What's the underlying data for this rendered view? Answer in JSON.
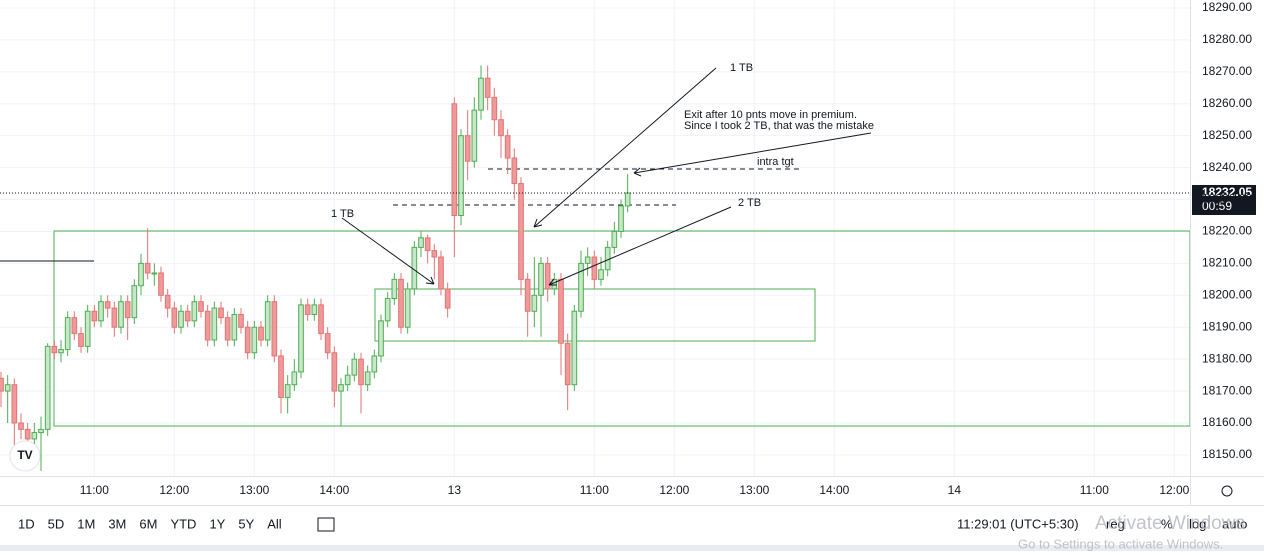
{
  "chart_data": {
    "type": "candlestick",
    "open": [
      18174,
      18170,
      18172,
      18160,
      18158,
      18155,
      18157,
      18158,
      18184,
      18182,
      18183,
      18193,
      18188,
      18184,
      18195,
      18192,
      18198,
      18196,
      18190,
      18198,
      18193,
      18203,
      18210,
      18207,
      18207,
      18200,
      18196,
      18190,
      18195,
      18192,
      18198,
      18195,
      18186,
      18196,
      18193,
      18186,
      18194,
      18190,
      18182,
      18190,
      18186,
      18198,
      18181,
      18168,
      18172,
      18176,
      18197,
      18194,
      18197,
      18188,
      18182,
      18170,
      18172,
      18175,
      18180,
      18172,
      18176,
      18181,
      18192,
      18199,
      18205,
      18190,
      18202,
      18215,
      18218,
      18214,
      18212,
      18202,
      18260,
      18225,
      18250,
      18242,
      18258,
      18268,
      18262,
      18255,
      18250,
      18243,
      18235,
      18205,
      18195,
      18200,
      18210,
      18202,
      18205,
      18185,
      18172,
      18195,
      18210,
      18212,
      18205,
      18208,
      18215,
      18220,
      18228
    ],
    "high": [
      18176,
      18175,
      18174,
      18163,
      18160,
      18160,
      18162,
      18185,
      18186,
      18186,
      18195,
      18195,
      18190,
      18197,
      18197,
      18200,
      18200,
      18198,
      18200,
      18200,
      18205,
      18213,
      18221,
      18210,
      18209,
      18202,
      18198,
      18197,
      18197,
      18200,
      18200,
      18197,
      18198,
      18198,
      18195,
      18196,
      18196,
      18192,
      18192,
      18192,
      18200,
      18200,
      18183,
      18175,
      18180,
      18199,
      18199,
      18199,
      18199,
      18190,
      18184,
      18174,
      18178,
      18182,
      18182,
      18178,
      18183,
      18194,
      18201,
      18207,
      18207,
      18204,
      18217,
      18220,
      18219,
      18216,
      18214,
      18204,
      18262,
      18252,
      18258,
      18262,
      18272,
      18272,
      18265,
      18258,
      18252,
      18246,
      18237,
      18207,
      18212,
      18212,
      18212,
      18207,
      18207,
      18188,
      18197,
      18214,
      18215,
      18214,
      18212,
      18217,
      18223,
      18230,
      18238
    ],
    "low": [
      18165,
      18160,
      18153,
      18155,
      18150,
      18152,
      18145,
      18156,
      18180,
      18179,
      18181,
      18186,
      18182,
      18182,
      18190,
      18190,
      18193,
      18187,
      18188,
      18186,
      18191,
      18200,
      18205,
      18203,
      18198,
      18193,
      18188,
      18188,
      18190,
      18190,
      18193,
      18184,
      18184,
      18191,
      18184,
      18184,
      18188,
      18180,
      18180,
      18184,
      18184,
      18179,
      18163,
      18163,
      18170,
      18174,
      18192,
      18192,
      18186,
      18180,
      18165,
      18159,
      18170,
      18173,
      18163,
      18170,
      18174,
      18179,
      18190,
      18197,
      18188,
      18188,
      18200,
      18212,
      18210,
      18205,
      18200,
      18193,
      18212,
      18222,
      18236,
      18240,
      18255,
      18258,
      18250,
      18243,
      18238,
      18230,
      18200,
      18187,
      18190,
      18187,
      18198,
      18200,
      18175,
      18164,
      18170,
      18193,
      18206,
      18202,
      18203,
      18206,
      18213,
      18218,
      18226
    ],
    "close": [
      18170,
      18172,
      18160,
      18158,
      18155,
      18157,
      18158,
      18184,
      18182,
      18183,
      18193,
      18188,
      18184,
      18195,
      18192,
      18198,
      18196,
      18190,
      18198,
      18193,
      18203,
      18210,
      18207,
      18207,
      18200,
      18196,
      18190,
      18195,
      18192,
      18198,
      18195,
      18186,
      18196,
      18193,
      18186,
      18194,
      18190,
      18182,
      18190,
      18186,
      18198,
      18181,
      18168,
      18172,
      18176,
      18197,
      18194,
      18197,
      18188,
      18182,
      18170,
      18172,
      18175,
      18180,
      18172,
      18176,
      18181,
      18192,
      18199,
      18205,
      18190,
      18202,
      18215,
      18218,
      18214,
      18212,
      18202,
      18196,
      18225,
      18250,
      18242,
      18258,
      18268,
      18262,
      18255,
      18250,
      18243,
      18235,
      18205,
      18195,
      18200,
      18210,
      18202,
      18205,
      18185,
      18172,
      18195,
      18210,
      18212,
      18205,
      18208,
      18215,
      18220,
      18228,
      18232.05
    ],
    "up_color": "#4caf50",
    "down_color": "#ef9a9a",
    "grid": true,
    "xlim": [
      -0.15,
      178.35
    ],
    "xticks": [
      {
        "value": 14,
        "label": "11:00"
      },
      {
        "value": 26,
        "label": "12:00"
      },
      {
        "value": 38,
        "label": "13:00"
      },
      {
        "value": 50,
        "label": "14:00"
      },
      {
        "value": 68,
        "label": "13"
      },
      {
        "value": 89,
        "label": "11:00"
      },
      {
        "value": 101,
        "label": "12:00"
      },
      {
        "value": 113,
        "label": "13:00"
      },
      {
        "value": 125,
        "label": "14:00"
      },
      {
        "value": 143,
        "label": "14"
      },
      {
        "value": 164,
        "label": "11:00"
      },
      {
        "value": 176,
        "label": "12:00"
      }
    ],
    "ylim": [
      18143.4,
      18292.5
    ],
    "yticks": [
      {
        "value": 18150,
        "label": "18150.00"
      },
      {
        "value": 18160,
        "label": "18160.00"
      },
      {
        "value": 18170,
        "label": "18170.00"
      },
      {
        "value": 18180,
        "label": "18180.00"
      },
      {
        "value": 18190,
        "label": "18190.00"
      },
      {
        "value": 18200,
        "label": "18200.00"
      },
      {
        "value": 18210,
        "label": "18210.00"
      },
      {
        "value": 18220,
        "label": "18220.00"
      },
      {
        "value": 18230,
        "label": "18230.00"
      },
      {
        "value": 18240,
        "label": "18240.00"
      },
      {
        "value": 18250,
        "label": "18250.00"
      },
      {
        "value": 18260,
        "label": "18260.00"
      },
      {
        "value": 18270,
        "label": "18270.00"
      },
      {
        "value": 18280,
        "label": "18280.00"
      },
      {
        "value": 18290,
        "label": "18290.00"
      }
    ],
    "last_price": 18232.05,
    "countdown": "00:59",
    "annotations": [
      "1 TB",
      "Exit after 10 pnts move in premium.",
      "Since I took 2 TB, that was the mistake",
      "intra tgt",
      "1 TB",
      "2 TB"
    ]
  },
  "toolbar": {
    "ranges": [
      "1D",
      "5D",
      "1M",
      "3M",
      "6M",
      "YTD",
      "1Y",
      "5Y",
      "All"
    ],
    "time": "11:29:01 (UTC+5:30)",
    "options": [
      "reg",
      "%",
      "log",
      "auto"
    ]
  },
  "watermark": {
    "title": "Activate Windows",
    "subtitle": "Go to Settings to activate Windows."
  }
}
